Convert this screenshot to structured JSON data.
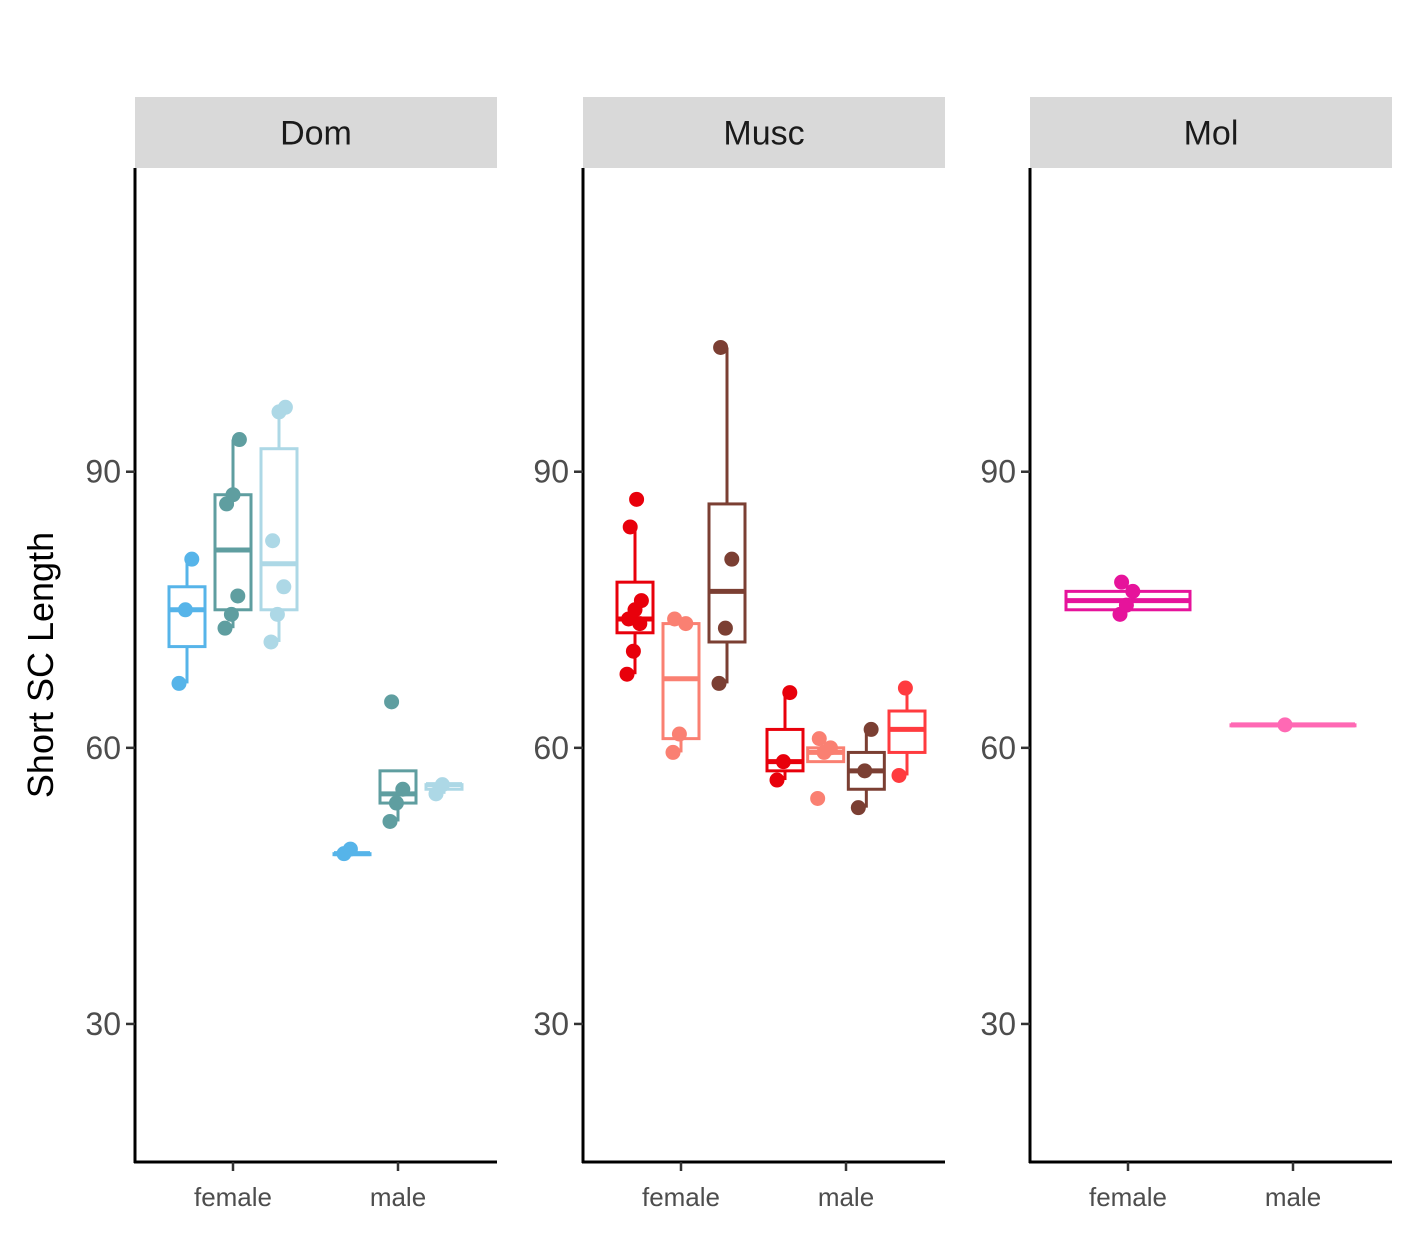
{
  "chart_data": {
    "type": "box",
    "ylabel": "Short SC Length",
    "xlabel": "",
    "ylim": [
      15,
      123
    ],
    "yticks": [
      30,
      60,
      90
    ],
    "categories": [
      "female",
      "male"
    ],
    "panels": [
      {
        "label": "Dom",
        "groups": [
          {
            "category": "female",
            "color": "#56B4E9",
            "q1": 71,
            "median": 75,
            "q3": 77.5,
            "lower": 67,
            "upper": 80.5,
            "points": [
              67,
              75,
              80.5
            ]
          },
          {
            "category": "female",
            "color": "#5F9EA0",
            "q1": 75,
            "median": 81.5,
            "q3": 87.5,
            "lower": 73,
            "upper": 93.5,
            "points": [
              73,
              74.5,
              76.5,
              86.5,
              87.5,
              93.5
            ]
          },
          {
            "category": "female",
            "color": "#ADD8E6",
            "q1": 75,
            "median": 80,
            "q3": 92.5,
            "lower": 71.5,
            "upper": 97,
            "points": [
              71.5,
              74.5,
              77.5,
              82.5,
              96.5,
              97
            ]
          },
          {
            "category": "male",
            "color": "#56B4E9",
            "q1": 48.5,
            "median": 48.5,
            "q3": 48.5,
            "lower": 48.5,
            "upper": 48.5,
            "points": [
              48.5,
              49
            ]
          },
          {
            "category": "male",
            "color": "#5F9EA0",
            "q1": 54,
            "median": 55,
            "q3": 57.5,
            "lower": 52,
            "upper": 57.5,
            "points": [
              52,
              54,
              55.5,
              65
            ]
          },
          {
            "category": "male",
            "color": "#ADD8E6",
            "q1": 55.5,
            "median": 56,
            "q3": 56,
            "lower": 55,
            "upper": 56,
            "points": [
              55,
              56
            ]
          }
        ]
      },
      {
        "label": "Musc",
        "groups": [
          {
            "category": "female",
            "color": "#E8000B",
            "q1": 72.5,
            "median": 74,
            "q3": 78,
            "lower": 68,
            "upper": 84,
            "points": [
              68,
              70.5,
              73.5,
              74,
              75,
              76,
              84,
              87
            ]
          },
          {
            "category": "female",
            "color": "#FA8072",
            "q1": 61,
            "median": 67.5,
            "q3": 73.5,
            "lower": 59.5,
            "upper": 74,
            "points": [
              59.5,
              61.5,
              73.5,
              74
            ]
          },
          {
            "category": "female",
            "color": "#7B3F33",
            "q1": 71.5,
            "median": 77,
            "q3": 86.5,
            "lower": 67,
            "upper": 103.5,
            "points": [
              67,
              73,
              80.5,
              103.5
            ]
          },
          {
            "category": "male",
            "color": "#E8000B",
            "q1": 57.5,
            "median": 58.5,
            "q3": 62,
            "lower": 56.5,
            "upper": 66,
            "points": [
              56.5,
              58.5,
              66
            ]
          },
          {
            "category": "male",
            "color": "#FA8072",
            "q1": 58.5,
            "median": 59.5,
            "q3": 60,
            "lower": 58.5,
            "upper": 60,
            "points": [
              54.5,
              59.5,
              60,
              61
            ]
          },
          {
            "category": "male",
            "color": "#7B3F33",
            "q1": 55.5,
            "median": 57.5,
            "q3": 59.5,
            "lower": 53.5,
            "upper": 62,
            "points": [
              53.5,
              57.5,
              62
            ]
          },
          {
            "category": "male",
            "color": "#FF3B3F",
            "q1": 59.5,
            "median": 62,
            "q3": 64,
            "lower": 57,
            "upper": 66.5,
            "points": [
              57,
              66.5
            ]
          }
        ]
      },
      {
        "label": "Mol",
        "groups": [
          {
            "category": "female",
            "color": "#E6139B",
            "q1": 75,
            "median": 76,
            "q3": 77,
            "lower": 75,
            "upper": 77,
            "points": [
              74.5,
              75.5,
              77,
              78
            ]
          },
          {
            "category": "male",
            "color": "#FF69B4",
            "q1": 62.5,
            "median": 62.5,
            "q3": 62.5,
            "lower": 62.5,
            "upper": 62.5,
            "points": [
              62.5
            ]
          }
        ]
      }
    ]
  }
}
